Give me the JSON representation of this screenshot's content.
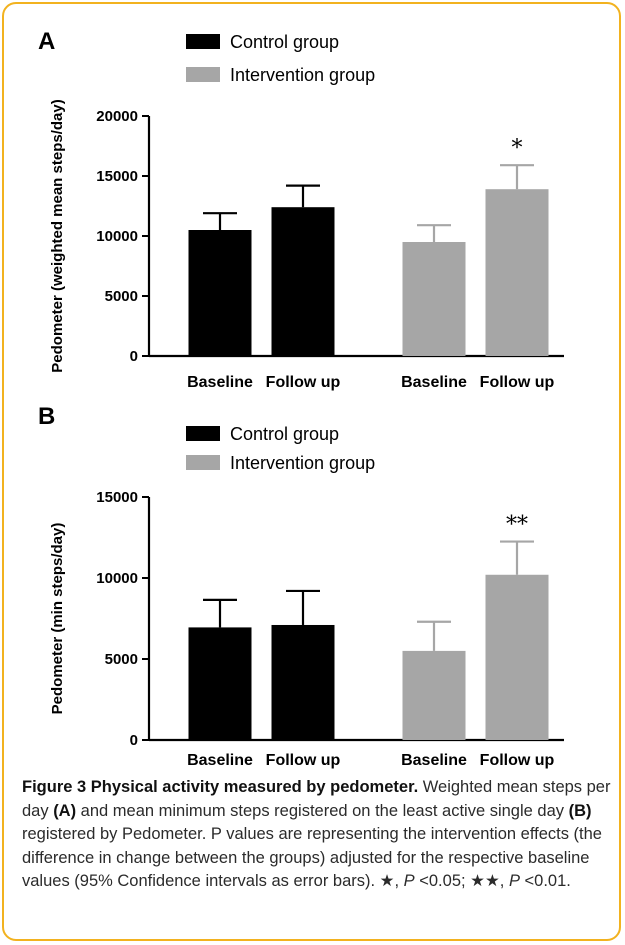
{
  "chart_data": [
    {
      "type": "bar",
      "panel": "A",
      "ylabel": "Pedometer (weighted mean steps/day)",
      "ylim": [
        0,
        20000
      ],
      "yticks": [
        0,
        5000,
        10000,
        15000,
        20000
      ],
      "legend": [
        {
          "name": "Control group",
          "color": "#000000"
        },
        {
          "name": "Intervention group",
          "color": "#a6a6a6"
        }
      ],
      "groups": [
        {
          "series": "Control group",
          "labels": [
            "Baseline",
            "Follow up"
          ],
          "values": [
            10500,
            12400
          ],
          "error": [
            1400,
            1800
          ],
          "color": "#000000",
          "marks": [
            "",
            ""
          ]
        },
        {
          "series": "Intervention group",
          "labels": [
            "Baseline",
            "Follow up"
          ],
          "values": [
            9500,
            13900
          ],
          "error": [
            1400,
            2000
          ],
          "color": "#a6a6a6",
          "marks": [
            "",
            "*"
          ]
        }
      ]
    },
    {
      "type": "bar",
      "panel": "B",
      "ylabel": "Pedometer (min steps/day)",
      "ylim": [
        0,
        15000
      ],
      "yticks": [
        0,
        5000,
        10000,
        15000
      ],
      "legend": [
        {
          "name": "Control group",
          "color": "#000000"
        },
        {
          "name": "Intervention group",
          "color": "#a6a6a6"
        }
      ],
      "groups": [
        {
          "series": "Control group",
          "labels": [
            "Baseline",
            "Follow up"
          ],
          "values": [
            6950,
            7100
          ],
          "error": [
            1700,
            2100
          ],
          "color": "#000000",
          "marks": [
            "",
            ""
          ]
        },
        {
          "series": "Intervention group",
          "labels": [
            "Baseline",
            "Follow up"
          ],
          "values": [
            5500,
            10200
          ],
          "error": [
            1800,
            2050
          ],
          "color": "#a6a6a6",
          "marks": [
            "",
            "**"
          ]
        }
      ]
    }
  ],
  "caption": {
    "label": "Figure 3 Physical activity measured by pedometer.",
    "text_1": " Weighted mean steps per day ",
    "ref_a": "(A)",
    "text_2": " and mean minimum steps registered on the least active single day ",
    "ref_b": "(B)",
    "text_3": " registered by Pedometer. P values are representing the intervention effects (the difference in change between the groups) adjusted for the respective baseline values (95% Confidence intervals as error bars). ",
    "star1": "★, ",
    "p1": "P",
    "v1": " <0.05; ",
    "star2": "★★, ",
    "p2": "P",
    "v2": " <0.01."
  }
}
